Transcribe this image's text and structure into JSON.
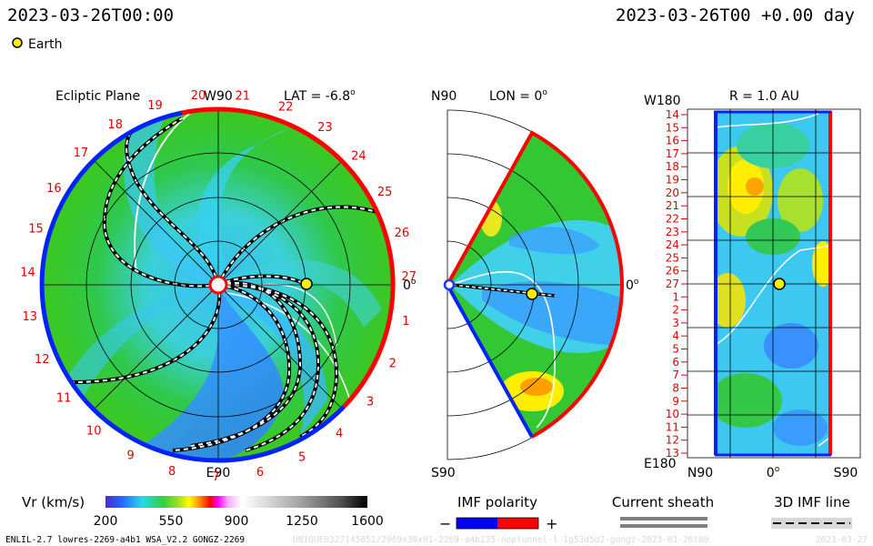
{
  "header": {
    "datetime_left": "2023-03-26T00:00",
    "datetime_right": "2023-03-26T00 +0.00 day",
    "legend_earth": "Earth"
  },
  "panels": {
    "ecliptic": {
      "title": "Ecliptic Plane",
      "lat_label": "LAT = -6.8",
      "top_label": "W90",
      "bottom_label": "E90",
      "right_label": "0",
      "deg": "o",
      "sector_numbers": [
        "20",
        "21",
        "22",
        "23",
        "24",
        "25",
        "26",
        "27",
        "1",
        "2",
        "3",
        "4",
        "5",
        "6",
        "7",
        "8",
        "9",
        "10",
        "11",
        "12",
        "13",
        "14",
        "15",
        "16",
        "17",
        "18",
        "19"
      ]
    },
    "meridional": {
      "top_label": "N90",
      "lon_label": "LON = 0",
      "bottom_label": "S90",
      "right_label": "0",
      "deg": "o"
    },
    "radial": {
      "top_left_label": "W180",
      "title": "R = 1.0 AU",
      "bottom_left_label": "E180",
      "x_labels": [
        "N90",
        "0",
        "S90"
      ],
      "deg": "o",
      "y_labels": [
        "14",
        "15",
        "16",
        "17",
        "18",
        "19",
        "20",
        "21",
        "22",
        "23",
        "24",
        "25",
        "26",
        "27",
        "1",
        "2",
        "3",
        "4",
        "5",
        "6",
        "7",
        "8",
        "9",
        "10",
        "11",
        "12",
        "13"
      ]
    }
  },
  "colorbar": {
    "label": "Vr (km/s)",
    "ticks": [
      "200",
      "550",
      "900",
      "1250",
      "1600"
    ],
    "range": [
      200,
      1600
    ]
  },
  "imf_polarity": {
    "title": "IMF polarity",
    "minus": "−",
    "plus": "+",
    "colors": [
      "#0000ff",
      "#ff0000"
    ]
  },
  "current_sheath": {
    "title": "Current sheath"
  },
  "imf_line": {
    "title": "3D IMF line"
  },
  "footer": {
    "left": "ENLIL-2.7 lowres-2269-a4b1 WSA_V2.2 GONGZ-2269",
    "center": "UNIQUE0327145851/2069x30x01-2269-a4b135-noptunnel-l-1g53d5d2-gongz-2023-03-26t00",
    "right": "2023-03-27"
  },
  "chart_data": [
    {
      "type": "heatmap",
      "title": "Ecliptic Plane",
      "view": "polar",
      "variable": "Vr (km/s)",
      "range": [
        200,
        1600
      ],
      "earth_position": {
        "r_au": 1.0,
        "lon_deg": 0
      },
      "approx_speed_regions": [
        {
          "region": "green ambient flow",
          "vr": 480
        },
        {
          "region": "cyan/blue spiral streams",
          "vr": 330
        },
        {
          "region": "blue slow stream south of Sun",
          "vr": 280
        }
      ]
    },
    {
      "type": "heatmap",
      "title": "LON = 0",
      "view": "meridional",
      "variable": "Vr (km/s)",
      "lat_range_deg": [
        -60,
        60
      ],
      "earth_position": {
        "r_au": 1.0,
        "lat_deg": -6.8
      },
      "approx_speed_regions": [
        {
          "region": "yellow high-latitude patches",
          "vr": 600
        },
        {
          "region": "green/cyan equatorial flow",
          "vr": 420
        }
      ]
    },
    {
      "type": "heatmap",
      "title": "R = 1.0 AU",
      "view": "lat-lon",
      "variable": "Vr (km/s)",
      "lon_range_deg": [
        -180,
        180
      ],
      "lat_range_deg": [
        -60,
        60
      ],
      "earth_position": {
        "lat_deg": -6.8,
        "lon_deg": 0
      },
      "approx_speed_regions": [
        {
          "region": "yellow patches near W180 half",
          "vr": 620
        },
        {
          "region": "cyan/blue background",
          "vr": 350
        }
      ]
    }
  ]
}
